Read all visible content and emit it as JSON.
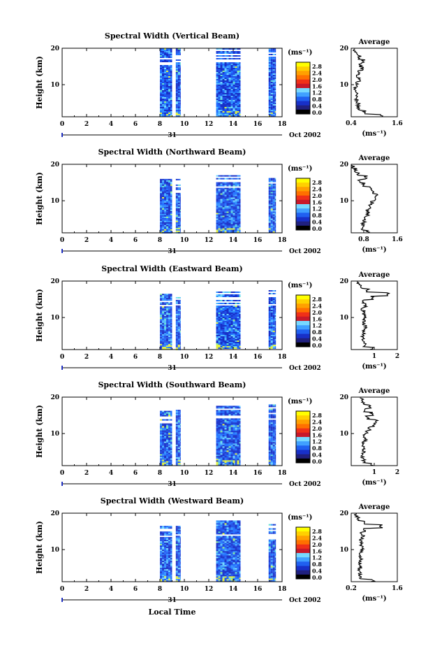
{
  "x_axis": {
    "ticks": [
      "0",
      "2",
      "4",
      "6",
      "8",
      "10",
      "12",
      "14",
      "16",
      "18"
    ],
    "min": 0,
    "max": 18,
    "day_label": "31",
    "month_label": "Oct 2002",
    "bottom_label": "Local Time"
  },
  "y_axis": {
    "label": "Height (km)",
    "ticks": [
      "10",
      "20"
    ],
    "min": 1.2,
    "max": 20
  },
  "colorbar": {
    "unit": "(ms⁻¹)",
    "labels": [
      "2.8",
      "2.4",
      "2.0",
      "1.6",
      "1.2",
      "0.8",
      "0.4",
      "0.0"
    ],
    "colors": [
      "#ffff00",
      "#ffd000",
      "#ffa000",
      "#ff7000",
      "#f03018",
      "#c8182a",
      "#78d8ff",
      "#40a0ff",
      "#2060f0",
      "#1830c8",
      "#202080",
      "#000000"
    ]
  },
  "chart_data": [
    {
      "type": "heatmap",
      "title": "Spectral Width (Vertical Beam)",
      "xlabel": "",
      "ylabel": "Height (km)",
      "xlim": [
        0,
        18
      ],
      "ylim": [
        1.2,
        20
      ],
      "data_blocks": [
        {
          "x_start": 8.0,
          "x_end": 9.0,
          "y_top": 20.0
        },
        {
          "x_start": 9.3,
          "x_end": 9.7,
          "y_top": 20.0
        },
        {
          "x_start": 12.6,
          "x_end": 14.6,
          "y_top": 20.0
        },
        {
          "x_start": 16.9,
          "x_end": 17.5,
          "y_top": 20.0
        }
      ],
      "average": {
        "title": "Average",
        "ticks": [
          "0.4",
          "1.6"
        ],
        "xlim": [
          0.4,
          1.6
        ],
        "unit": "(ms⁻¹)",
        "profile_heights": [
          1.5,
          2.5,
          3.5,
          4.5,
          5.5,
          6.5,
          7.5,
          8.5,
          9.5,
          10.5,
          11.5,
          12.5,
          13.5,
          14.5,
          15.5,
          16.5,
          17.5,
          18.5,
          19.5
        ],
        "profile_values": [
          1.2,
          0.75,
          0.6,
          0.58,
          0.55,
          0.52,
          0.55,
          0.5,
          0.52,
          0.55,
          0.6,
          0.58,
          0.62,
          0.68,
          0.65,
          0.72,
          0.62,
          0.55,
          0.5
        ]
      }
    },
    {
      "type": "heatmap",
      "title": "Spectral Width (Northward Beam)",
      "xlabel": "",
      "ylabel": "Height (km)",
      "xlim": [
        0,
        18
      ],
      "ylim": [
        1.2,
        20
      ],
      "data_blocks": [
        {
          "x_start": 8.0,
          "x_end": 9.0,
          "y_top": 16.0
        },
        {
          "x_start": 9.3,
          "x_end": 9.7,
          "y_top": 16.0
        },
        {
          "x_start": 12.6,
          "x_end": 14.6,
          "y_top": 17.0
        },
        {
          "x_start": 16.9,
          "x_end": 17.5,
          "y_top": 17.0
        }
      ],
      "average": {
        "title": "Average",
        "ticks": [
          "0.8",
          "1.6"
        ],
        "xlim": [
          0.5,
          1.6
        ],
        "unit": "(ms⁻¹)",
        "profile_heights": [
          1.5,
          2.5,
          3.5,
          4.5,
          5.5,
          6.5,
          7.5,
          8.5,
          9.5,
          10.5,
          11.5,
          12.5,
          13.5,
          14.5,
          15.5,
          16.5,
          17.5,
          18.5,
          19.5
        ],
        "profile_values": [
          0.9,
          0.75,
          0.78,
          0.82,
          0.85,
          0.9,
          0.88,
          0.95,
          1.0,
          1.05,
          1.1,
          1.0,
          0.95,
          0.8,
          0.7,
          0.85,
          0.65,
          0.6,
          0.55
        ]
      }
    },
    {
      "type": "heatmap",
      "title": "Spectral Width (Eastward Beam)",
      "xlabel": "",
      "ylabel": "Height (km)",
      "xlim": [
        0,
        18
      ],
      "ylim": [
        1.2,
        20
      ],
      "data_blocks": [
        {
          "x_start": 8.0,
          "x_end": 9.0,
          "y_top": 16.5
        },
        {
          "x_start": 9.3,
          "x_end": 9.7,
          "y_top": 16.0
        },
        {
          "x_start": 12.6,
          "x_end": 14.6,
          "y_top": 17.5
        },
        {
          "x_start": 16.9,
          "x_end": 17.5,
          "y_top": 17.5
        }
      ],
      "average": {
        "title": "Average",
        "ticks": [
          "1",
          "2"
        ],
        "xlim": [
          0,
          2
        ],
        "unit": "(ms⁻¹)",
        "profile_heights": [
          1.5,
          2.5,
          3.5,
          4.5,
          5.5,
          6.5,
          7.5,
          8.5,
          9.5,
          10.5,
          11.5,
          12.5,
          13.5,
          14.5,
          15.5,
          16.5,
          17.5,
          18.5,
          19.5
        ],
        "profile_values": [
          0.9,
          0.6,
          0.55,
          0.5,
          0.55,
          0.52,
          0.6,
          0.55,
          0.58,
          0.6,
          0.55,
          0.5,
          0.6,
          0.55,
          0.9,
          1.6,
          0.7,
          0.4,
          0.3
        ]
      }
    },
    {
      "type": "heatmap",
      "title": "Spectral Width (Southward Beam)",
      "xlabel": "",
      "ylabel": "Height (km)",
      "xlim": [
        0,
        18
      ],
      "ylim": [
        1.2,
        20
      ],
      "data_blocks": [
        {
          "x_start": 8.0,
          "x_end": 9.0,
          "y_top": 17.0
        },
        {
          "x_start": 9.3,
          "x_end": 9.7,
          "y_top": 16.5
        },
        {
          "x_start": 12.6,
          "x_end": 14.6,
          "y_top": 18.0
        },
        {
          "x_start": 16.9,
          "x_end": 17.5,
          "y_top": 18.0
        }
      ],
      "average": {
        "title": "Average",
        "ticks": [
          "1",
          "2"
        ],
        "xlim": [
          0,
          2
        ],
        "unit": "(ms⁻¹)",
        "profile_heights": [
          1.5,
          2.5,
          3.5,
          4.5,
          5.5,
          6.5,
          7.5,
          8.5,
          9.5,
          10.5,
          11.5,
          12.5,
          13.5,
          14.5,
          15.5,
          16.5,
          17.5,
          18.5,
          19.5
        ],
        "profile_values": [
          0.9,
          0.55,
          0.5,
          0.5,
          0.55,
          0.5,
          0.55,
          0.6,
          0.58,
          0.65,
          0.8,
          1.0,
          1.1,
          0.7,
          0.9,
          0.6,
          0.8,
          0.5,
          0.45
        ]
      }
    },
    {
      "type": "heatmap",
      "title": "Spectral Width (Westward Beam)",
      "xlabel": "Local Time",
      "ylabel": "Height (km)",
      "xlim": [
        0,
        18
      ],
      "ylim": [
        1.2,
        20
      ],
      "data_blocks": [
        {
          "x_start": 8.0,
          "x_end": 9.0,
          "y_top": 16.5
        },
        {
          "x_start": 9.3,
          "x_end": 9.7,
          "y_top": 16.5
        },
        {
          "x_start": 12.6,
          "x_end": 14.6,
          "y_top": 18.0
        },
        {
          "x_start": 16.9,
          "x_end": 17.5,
          "y_top": 17.0
        }
      ],
      "average": {
        "title": "Average",
        "ticks": [
          "0.2",
          "1.6"
        ],
        "xlim": [
          0.2,
          1.6
        ],
        "unit": "(ms⁻¹)",
        "profile_heights": [
          1.5,
          2.5,
          3.5,
          4.5,
          5.5,
          6.5,
          7.5,
          8.5,
          9.5,
          10.5,
          11.5,
          12.5,
          13.5,
          14.5,
          15.5,
          16.5,
          17.5,
          18.5,
          19.5
        ],
        "profile_values": [
          0.85,
          0.5,
          0.45,
          0.45,
          0.5,
          0.48,
          0.5,
          0.45,
          0.5,
          0.55,
          0.5,
          0.48,
          0.55,
          0.5,
          0.6,
          1.1,
          0.6,
          0.4,
          0.35
        ]
      }
    }
  ]
}
